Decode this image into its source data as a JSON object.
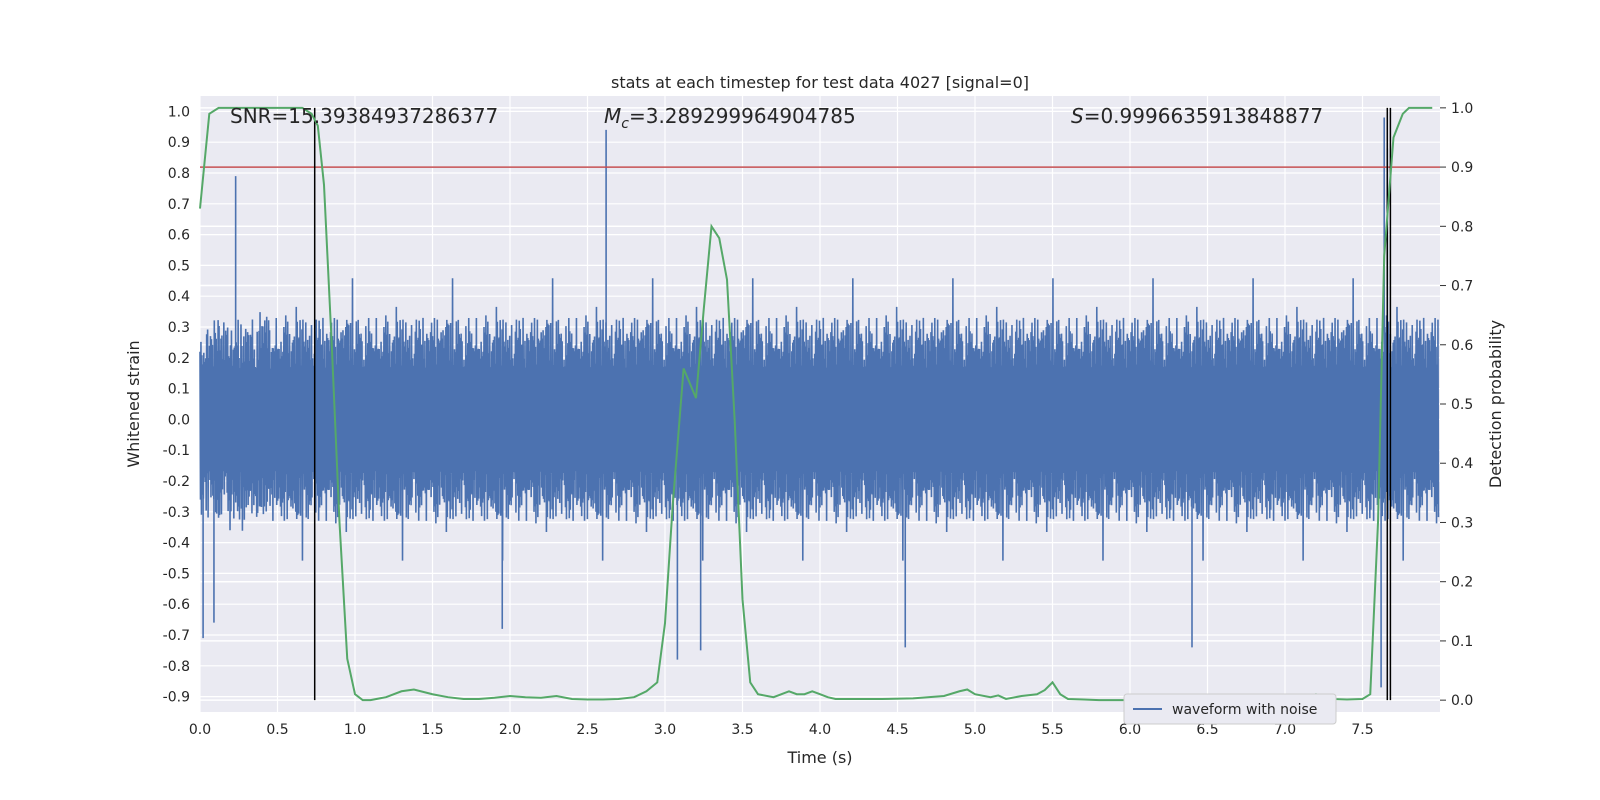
{
  "chart_data": {
    "type": "line",
    "title": "stats at each timestep for test data 4027 [signal=0]",
    "xlabel": "Time (s)",
    "ylabel": "Whitened strain",
    "y2label": "Detection probability",
    "xlim": [
      0.0,
      8.0
    ],
    "ylim": [
      -0.95,
      1.05
    ],
    "y2lim": [
      -0.02,
      1.02
    ],
    "x_ticks": [
      "0.0",
      "0.5",
      "1.0",
      "1.5",
      "2.0",
      "2.5",
      "3.0",
      "3.5",
      "4.0",
      "4.5",
      "5.0",
      "5.5",
      "6.0",
      "6.5",
      "7.0",
      "7.5"
    ],
    "y_ticks": [
      "1.0",
      "0.9",
      "0.8",
      "0.7",
      "0.6",
      "0.5",
      "0.4",
      "0.3",
      "0.2",
      "0.1",
      "0.0",
      "-0.1",
      "-0.2",
      "-0.3",
      "-0.4",
      "-0.5",
      "-0.6",
      "-0.7",
      "-0.8",
      "-0.9"
    ],
    "y2_ticks": [
      "1.0",
      "0.9",
      "0.8",
      "0.7",
      "0.6",
      "0.5",
      "0.4",
      "0.3",
      "0.2",
      "0.1",
      "0.0"
    ],
    "annotations": {
      "snr": "SNR=15.39384937286377",
      "mc_symbol": "M",
      "mc_sub": "c",
      "mc_value": "=3.289299964904785",
      "s_symbol": "S",
      "s_value": "=0.9996635913848877"
    },
    "legend": {
      "label": "waveform with noise",
      "position": "lower-right"
    },
    "threshold_prob": 0.9,
    "vlines": [
      0.74,
      7.68,
      7.66
    ],
    "waveform": {
      "name": "waveform with noise",
      "base_amplitude": 0.33,
      "spikes": [
        {
          "x": 0.23,
          "y": 0.79
        },
        {
          "x": 2.62,
          "y": 0.94
        },
        {
          "x": 0.02,
          "y": -0.71
        },
        {
          "x": 0.09,
          "y": -0.66
        },
        {
          "x": 3.08,
          "y": -0.78
        },
        {
          "x": 3.23,
          "y": -0.75
        },
        {
          "x": 1.95,
          "y": -0.68
        },
        {
          "x": 4.55,
          "y": -0.74
        },
        {
          "x": 6.4,
          "y": -0.74
        },
        {
          "x": 7.62,
          "y": -0.87
        },
        {
          "x": 7.64,
          "y": 0.98
        },
        {
          "x": 7.66,
          "y": 0.88
        }
      ]
    },
    "probability": {
      "name": "detection probability",
      "x": [
        0.0,
        0.06,
        0.12,
        0.2,
        0.3,
        0.4,
        0.5,
        0.6,
        0.66,
        0.72,
        0.76,
        0.8,
        0.85,
        0.9,
        0.95,
        1.0,
        1.05,
        1.1,
        1.2,
        1.3,
        1.38,
        1.5,
        1.6,
        1.7,
        1.8,
        1.9,
        2.0,
        2.1,
        2.2,
        2.3,
        2.4,
        2.5,
        2.6,
        2.7,
        2.8,
        2.88,
        2.95,
        3.0,
        3.05,
        3.12,
        3.2,
        3.25,
        3.3,
        3.35,
        3.4,
        3.45,
        3.5,
        3.55,
        3.6,
        3.7,
        3.8,
        3.85,
        3.9,
        3.95,
        4.0,
        4.05,
        4.1,
        4.2,
        4.4,
        4.6,
        4.8,
        4.9,
        4.95,
        5.0,
        5.1,
        5.15,
        5.2,
        5.3,
        5.4,
        5.45,
        5.5,
        5.55,
        5.6,
        5.7,
        5.8,
        6.0,
        6.5,
        6.8,
        6.9,
        6.95,
        7.0,
        7.1,
        7.2,
        7.3,
        7.4,
        7.5,
        7.55,
        7.6,
        7.64,
        7.7,
        7.76,
        7.8,
        7.86,
        7.95
      ],
      "y": [
        0.83,
        0.99,
        1.0,
        1.0,
        1.0,
        1.0,
        1.0,
        1.0,
        1.0,
        0.99,
        0.97,
        0.87,
        0.6,
        0.3,
        0.07,
        0.01,
        0.0,
        0.0,
        0.005,
        0.015,
        0.018,
        0.01,
        0.005,
        0.002,
        0.002,
        0.004,
        0.007,
        0.005,
        0.004,
        0.007,
        0.002,
        0.001,
        0.001,
        0.002,
        0.005,
        0.015,
        0.03,
        0.13,
        0.33,
        0.56,
        0.51,
        0.66,
        0.8,
        0.78,
        0.71,
        0.47,
        0.17,
        0.03,
        0.01,
        0.005,
        0.015,
        0.01,
        0.01,
        0.015,
        0.01,
        0.005,
        0.002,
        0.002,
        0.002,
        0.003,
        0.007,
        0.015,
        0.018,
        0.01,
        0.005,
        0.008,
        0.002,
        0.007,
        0.01,
        0.017,
        0.03,
        0.01,
        0.002,
        0.001,
        0.0,
        0.0,
        0.0,
        0.001,
        0.004,
        0.008,
        0.005,
        0.005,
        0.01,
        0.002,
        0.001,
        0.002,
        0.01,
        0.3,
        0.75,
        0.95,
        0.99,
        1.0,
        1.0,
        1.0
      ]
    },
    "colors": {
      "background": "#eaeaf2",
      "grid": "#ffffff",
      "waveform": "#4c72b0",
      "probability": "#55a868",
      "threshold": "#c44e52",
      "vline": "#000000"
    }
  }
}
